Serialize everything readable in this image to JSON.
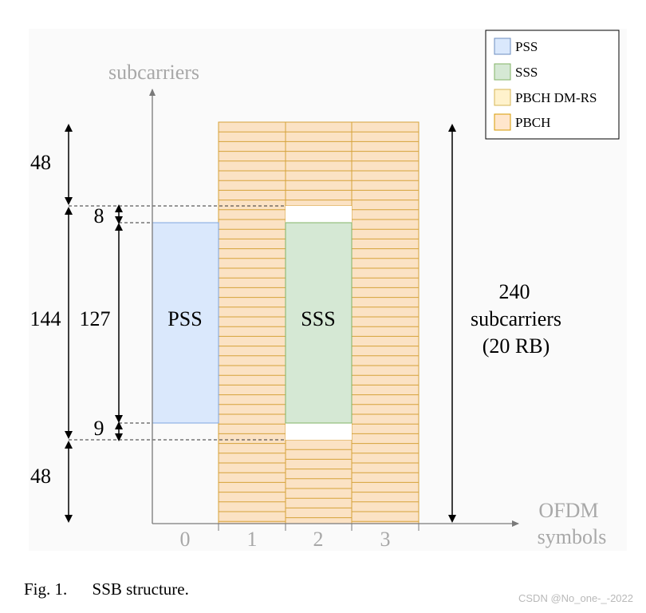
{
  "axes": {
    "y_label": "subcarriers",
    "x_label_line1": "OFDM",
    "x_label_line2": "symbols",
    "x_ticks": [
      "0",
      "1",
      "2",
      "3"
    ]
  },
  "blocks": {
    "pss_label": "PSS",
    "sss_label": "SSS"
  },
  "dimensions": {
    "top": "48",
    "middle": "144",
    "bottom": "48",
    "pss_gap_top": "8",
    "pss_height": "127",
    "pss_gap_bottom": "9"
  },
  "total": {
    "line1": "240",
    "line2": "subcarriers",
    "line3": "(20 RB)"
  },
  "legend": {
    "items": [
      {
        "label": "PSS",
        "color": "#dae8fc",
        "border": "#6c8ebf"
      },
      {
        "label": "SSS",
        "color": "#d5e8d4",
        "border": "#82b366"
      },
      {
        "label": "PBCH DM-RS",
        "color": "#fff2cc",
        "border": "#d6b656"
      },
      {
        "label": "PBCH",
        "color": "#ffe6cc",
        "border": "#d79b00"
      }
    ]
  },
  "caption": {
    "figure": "Fig. 1.",
    "text": "SSB structure."
  },
  "watermark": "CSDN @No_one-_-2022",
  "colors": {
    "pss_fill": "#dae8fc",
    "pss_stroke": "#7ea6e0",
    "sss_fill": "#d5e8d4",
    "sss_stroke": "#82b366",
    "pbch_fill": "#fbe2c4",
    "pbch_stroke": "#d6a23a",
    "dmrs_fill": "#fff2cc"
  }
}
